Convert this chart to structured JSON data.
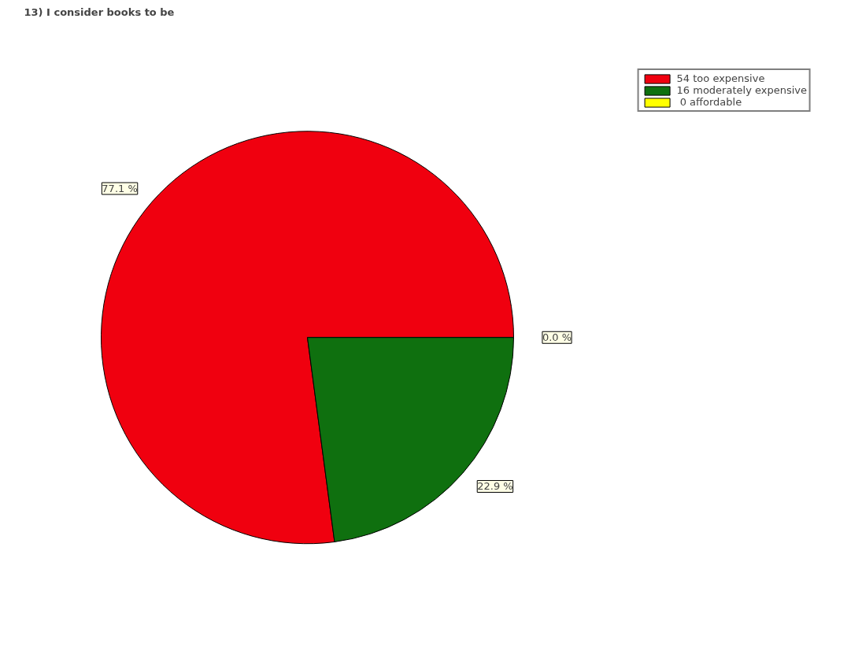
{
  "chart_data": {
    "type": "pie",
    "title": "13) I consider books to be",
    "categories": [
      "54 too expensive",
      "16 moderately expensive",
      " 0 affordable"
    ],
    "values": [
      77.1,
      22.9,
      0.0
    ],
    "colors": [
      "#f0000f",
      "#0f700f",
      "#ffff00"
    ],
    "value_labels": [
      "77.1 %",
      "22.9 %",
      "0.0 %"
    ],
    "legend": "top right"
  }
}
